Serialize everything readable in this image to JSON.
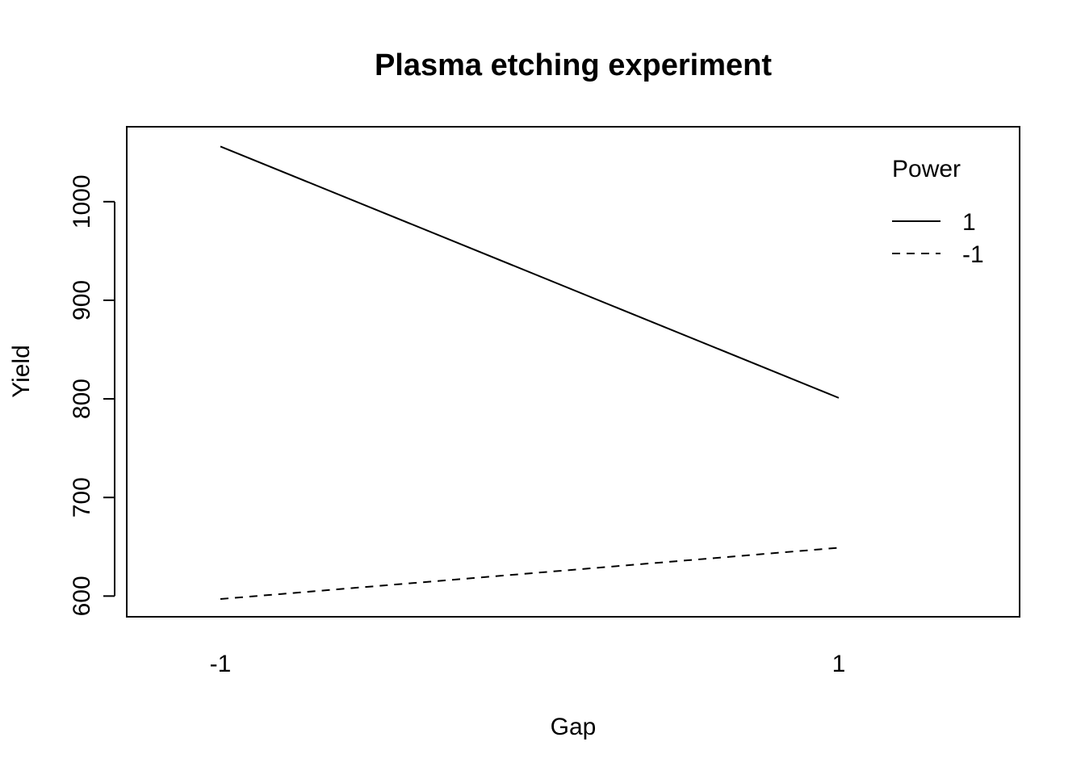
{
  "chart_data": {
    "type": "line",
    "title": "Plasma etching experiment",
    "xlabel": "Gap",
    "ylabel": "Yield",
    "x": [
      "-1",
      "1"
    ],
    "series": [
      {
        "name": "1",
        "line_style": "solid",
        "values": [
          1056,
          801
        ]
      },
      {
        "name": "-1",
        "line_style": "dashed",
        "values": [
          597,
          649
        ]
      }
    ],
    "yticks": [
      600,
      700,
      800,
      900,
      1000
    ],
    "ylim": [
      579,
      1076
    ],
    "legend": {
      "title": "Power",
      "placement": "top-right"
    },
    "grid": false,
    "colors": {
      "line": "#000000",
      "background": "#ffffff"
    }
  }
}
